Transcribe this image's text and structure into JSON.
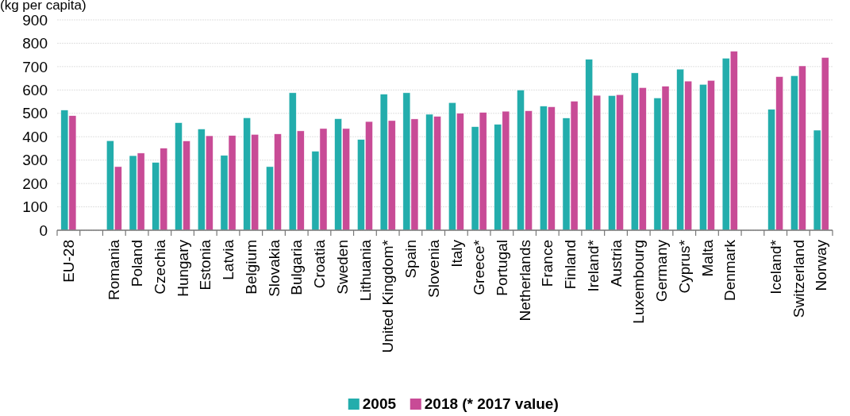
{
  "chart_data": {
    "type": "bar",
    "ylabel": "(kg per capita)",
    "categories": [
      "EU-28",
      null,
      "Romania",
      "Poland",
      "Czechia",
      "Hungary",
      "Estonia",
      "Latvia",
      "Belgium",
      "Slovakia",
      "Bulgaria",
      "Croatia",
      "Sweden",
      "Lithuania",
      "United Kingdom*",
      "Spain",
      "Slovenia",
      "Italy",
      "Greece*",
      "Portugal",
      "Netherlands",
      "France",
      "Finland",
      "Ireland*",
      "Austria",
      "Luxembourg",
      "Germany",
      "Cyprus*",
      "Malta",
      "Denmark",
      null,
      "Iceland*",
      "Switzerland",
      "Norway"
    ],
    "series": [
      {
        "name": "2005",
        "color": "#23adac",
        "values": [
          514,
          null,
          383,
          319,
          290,
          460,
          433,
          320,
          481,
          272,
          588,
          338,
          477,
          388,
          582,
          588,
          496,
          546,
          443,
          453,
          600,
          531,
          480,
          731,
          576,
          673,
          566,
          689,
          624,
          736,
          null,
          517,
          661,
          428
        ]
      },
      {
        "name": "2018 (* 2017 value)",
        "color": "#c84b96",
        "values": [
          490,
          null,
          272,
          330,
          351,
          382,
          404,
          405,
          410,
          412,
          425,
          435,
          435,
          465,
          469,
          476,
          487,
          500,
          504,
          509,
          511,
          528,
          552,
          577,
          580,
          610,
          616,
          638,
          641,
          766,
          null,
          657,
          703,
          739
        ]
      }
    ],
    "ylim": [
      0,
      900
    ],
    "yticks": [
      0,
      100,
      200,
      300,
      400,
      500,
      600,
      700,
      800,
      900
    ],
    "grid": "y",
    "legend": "bottom"
  }
}
